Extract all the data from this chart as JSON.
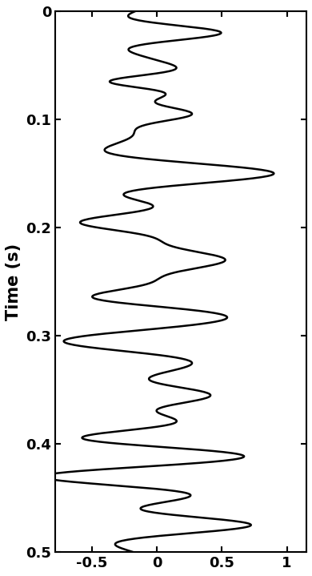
{
  "title": "",
  "ylabel": "Time (s)",
  "xlabel": "",
  "xlim": [
    -0.78,
    1.15
  ],
  "ylim": [
    0.0,
    0.5
  ],
  "xticks": [
    -0.5,
    0,
    0.5,
    1
  ],
  "yticks": [
    0,
    0.1,
    0.2,
    0.3,
    0.4,
    0.5
  ],
  "line_color": "#000000",
  "line_width": 1.8,
  "background_color": "#ffffff",
  "figsize": [
    3.9,
    7.19
  ],
  "dpi": 100,
  "reflectors": [
    {
      "time": 0.02,
      "amplitude": 0.55,
      "freq": 25
    },
    {
      "time": 0.065,
      "amplitude": -0.4,
      "freq": 30
    },
    {
      "time": 0.095,
      "amplitude": 0.3,
      "freq": 28
    },
    {
      "time": 0.15,
      "amplitude": 1.0,
      "freq": 18
    },
    {
      "time": 0.195,
      "amplitude": -0.6,
      "freq": 22
    },
    {
      "time": 0.23,
      "amplitude": 0.55,
      "freq": 20
    },
    {
      "time": 0.265,
      "amplitude": -0.55,
      "freq": 22
    },
    {
      "time": 0.305,
      "amplitude": -0.8,
      "freq": 18
    },
    {
      "time": 0.355,
      "amplitude": 0.45,
      "freq": 22
    },
    {
      "time": 0.395,
      "amplitude": -0.7,
      "freq": 22
    },
    {
      "time": 0.43,
      "amplitude": -1.0,
      "freq": 20
    },
    {
      "time": 0.475,
      "amplitude": 0.8,
      "freq": 22
    }
  ]
}
